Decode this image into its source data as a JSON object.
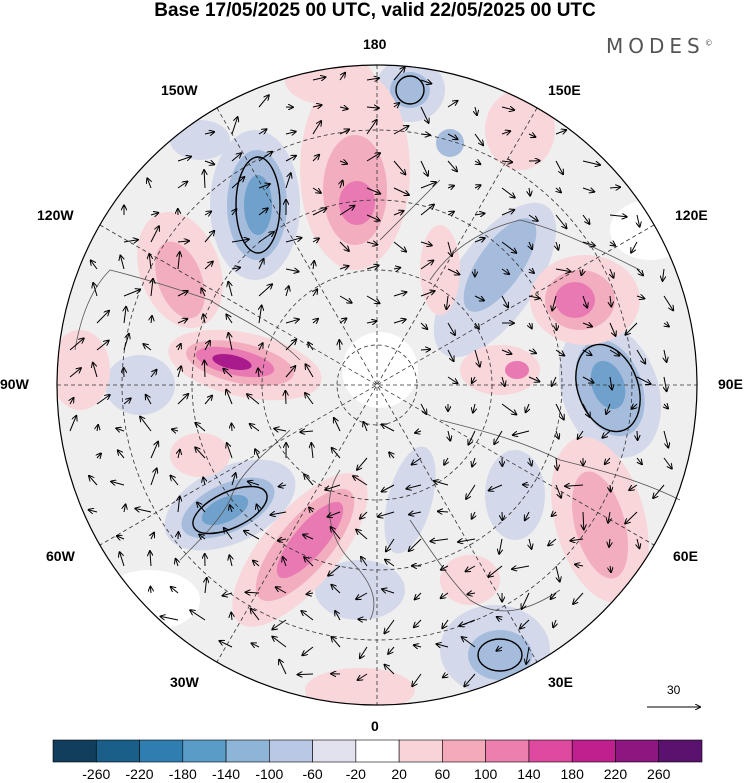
{
  "title": "Base 17/05/2025 00 UTC, valid 22/05/2025 00 UTC",
  "brand": {
    "name": "MODES",
    "mark": "©"
  },
  "longitude_labels": {
    "top": "180",
    "bottom": "0",
    "left": "90W",
    "right": "90E",
    "nw_upper": "150W",
    "nw_lower": "120W",
    "ne_upper": "150E",
    "ne_lower": "120E",
    "sw_upper": "60W",
    "sw_lower": "30W",
    "se_upper": "60E",
    "se_lower": "30E"
  },
  "reference_vector": {
    "label": "30"
  },
  "colorbar": {
    "ticks": [
      "-260",
      "-220",
      "-180",
      "-140",
      "-100",
      "-60",
      "-20",
      "20",
      "60",
      "100",
      "140",
      "180",
      "220",
      "260"
    ],
    "colors": [
      "#123e5e",
      "#1a5f8a",
      "#2f7db1",
      "#5a9cc8",
      "#8db5d8",
      "#b9c8e4",
      "#e2e2ef",
      "#ffffff",
      "#f8d4d6",
      "#f4aab9",
      "#ec7fac",
      "#df4aa1",
      "#c01f8e",
      "#8d1681",
      "#5a126e"
    ]
  },
  "field_colors": {
    "neutral": "#efefef",
    "blue_weak": "#d3d8ea",
    "blue_mid": "#a5bcdc",
    "blue_strong": "#6fa1cc",
    "pink_weak": "#f8d6da",
    "pink_mid": "#f2aebf",
    "pink_strong": "#e979b3",
    "magenta": "#a91a8c"
  }
}
